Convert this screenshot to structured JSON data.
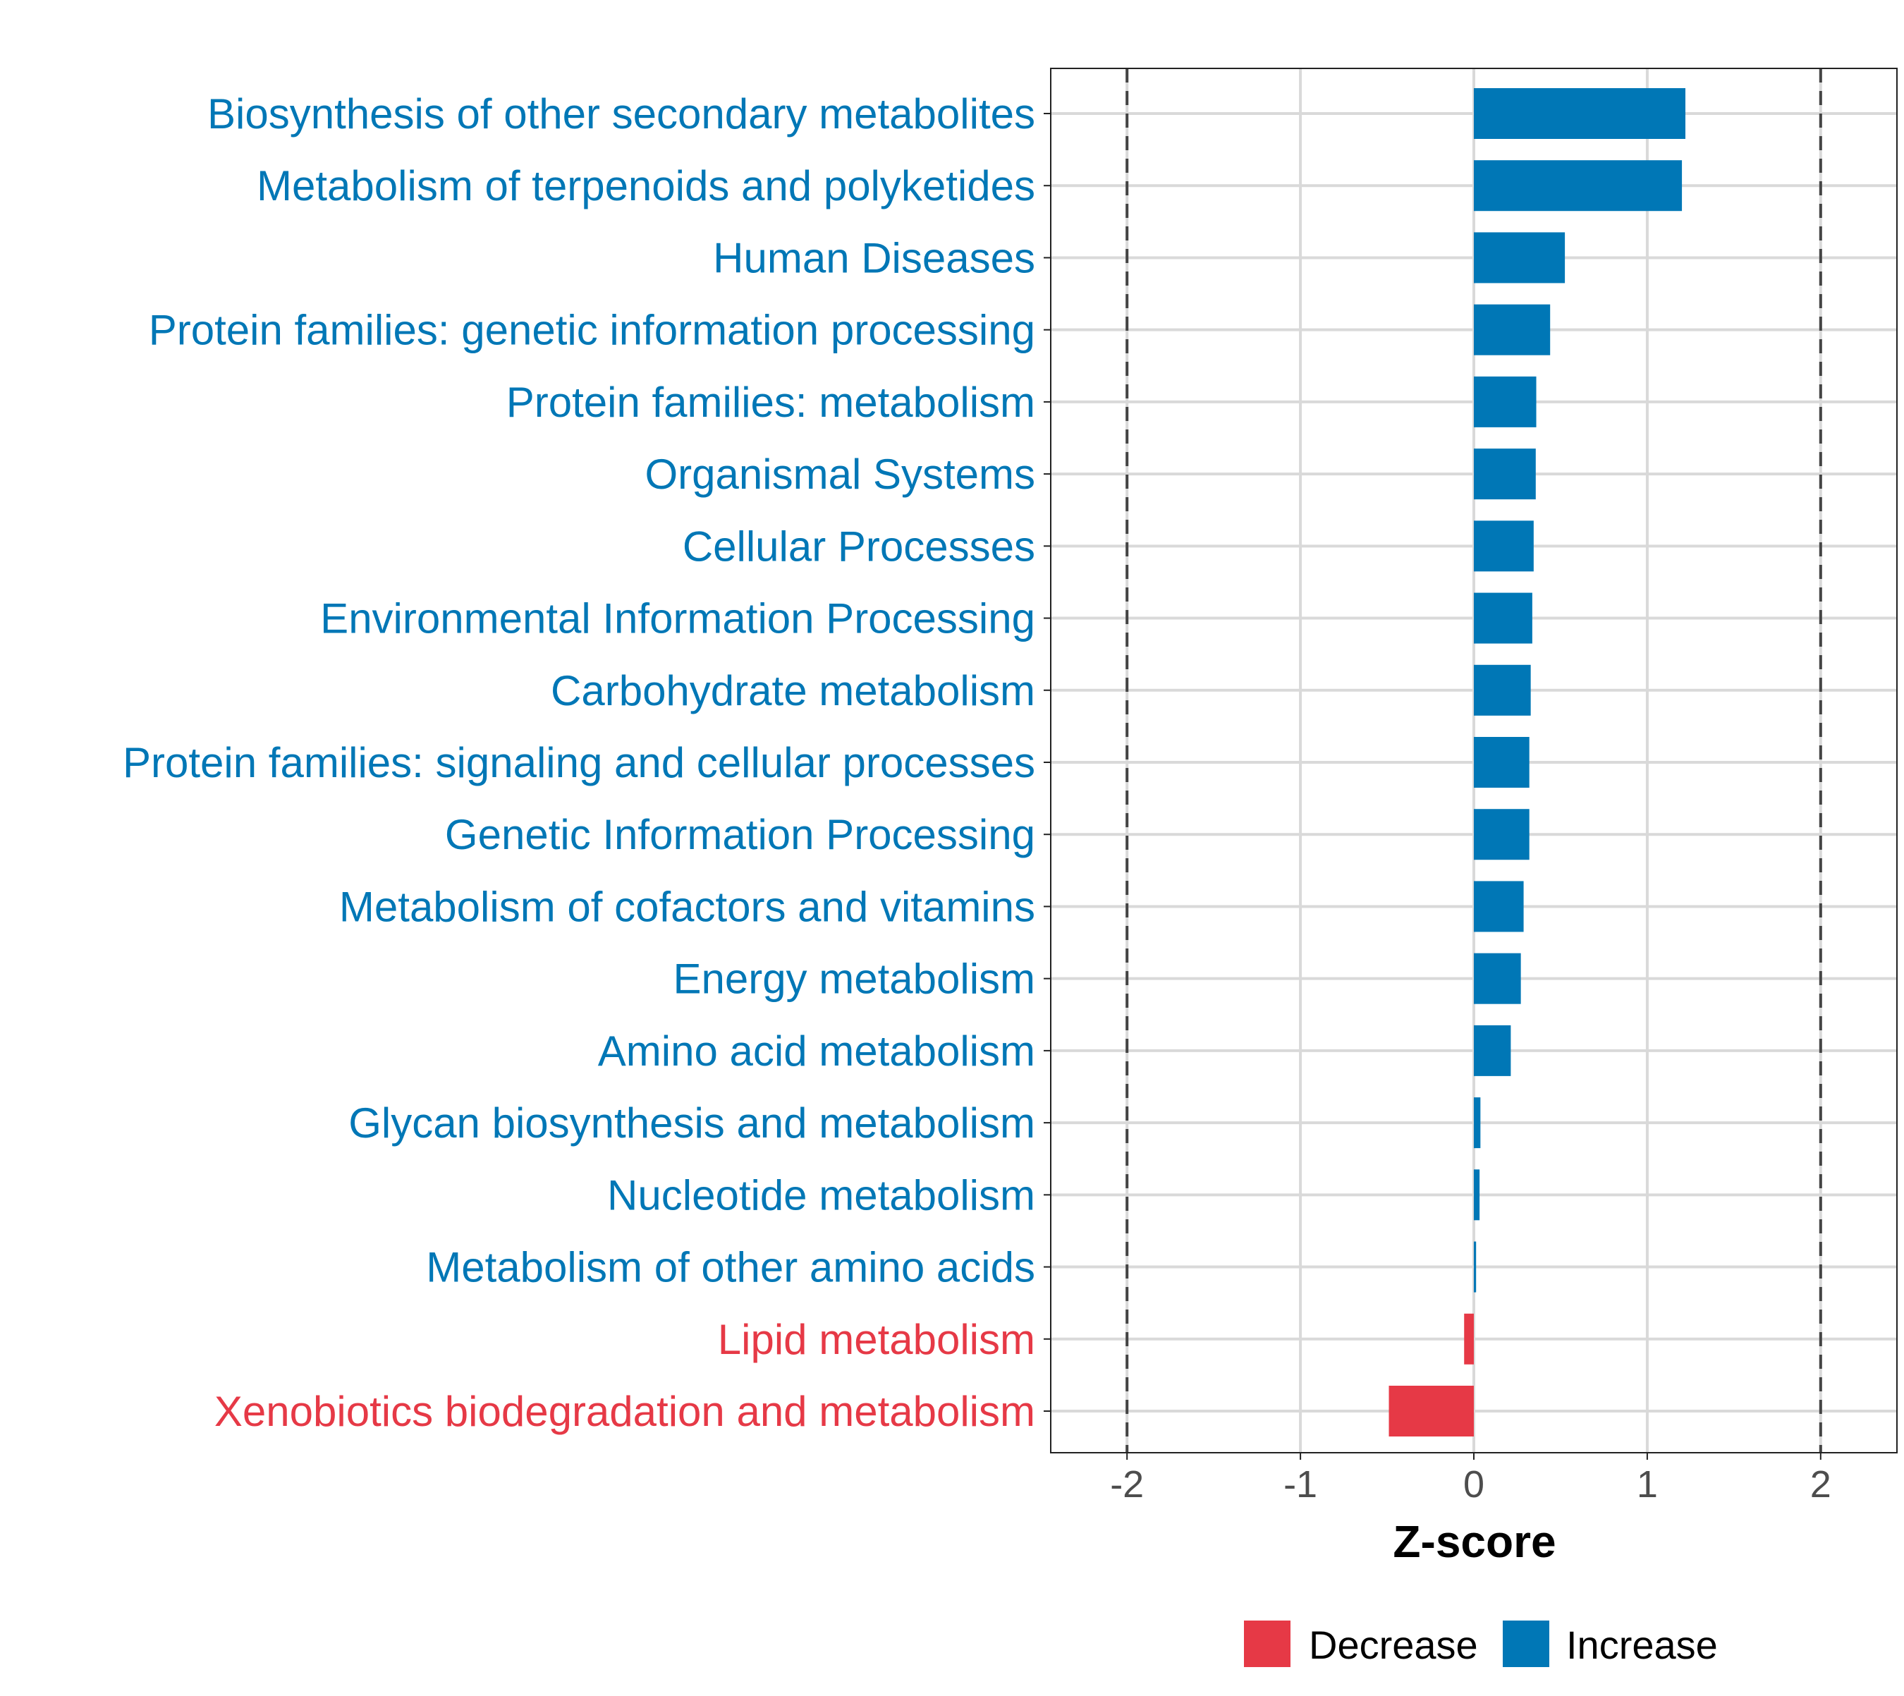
{
  "chart_data": {
    "type": "bar",
    "orientation": "horizontal",
    "title": "",
    "xlabel": "Z-score",
    "ylabel": "",
    "xlim": [
      -2.44,
      2.44
    ],
    "xticks": [
      -2,
      -1,
      0,
      1,
      2
    ],
    "xtick_labels": [
      "-2",
      "-1",
      "0",
      "1",
      "2"
    ],
    "reference_lines": [
      -2,
      2
    ],
    "grid": true,
    "categories": [
      "Biosynthesis of other secondary metabolites",
      "Metabolism of terpenoids and polyketides",
      "Human Diseases",
      "Protein families: genetic information processing",
      "Protein families: metabolism",
      "Organismal Systems",
      "Cellular Processes",
      "Environmental Information Processing",
      "Carbohydrate metabolism",
      "Protein families: signaling and cellular processes",
      "Genetic Information Processing",
      "Metabolism of cofactors and vitamins",
      "Energy metabolism",
      "Amino acid metabolism",
      "Glycan biosynthesis and metabolism",
      "Nucleotide metabolism",
      "Metabolism of other amino acids",
      "Lipid metabolism",
      "Xenobiotics biodegradation and metabolism"
    ],
    "values": [
      1.22,
      1.2,
      0.525,
      0.44,
      0.36,
      0.357,
      0.345,
      0.337,
      0.328,
      0.32,
      0.32,
      0.287,
      0.271,
      0.213,
      0.038,
      0.033,
      0.013,
      -0.056,
      -0.49
    ],
    "legend": {
      "placement": "bottom",
      "entries": [
        {
          "label": "Decrease",
          "color": "#E63946"
        },
        {
          "label": "Increase",
          "color": "#0077B6"
        }
      ]
    }
  }
}
